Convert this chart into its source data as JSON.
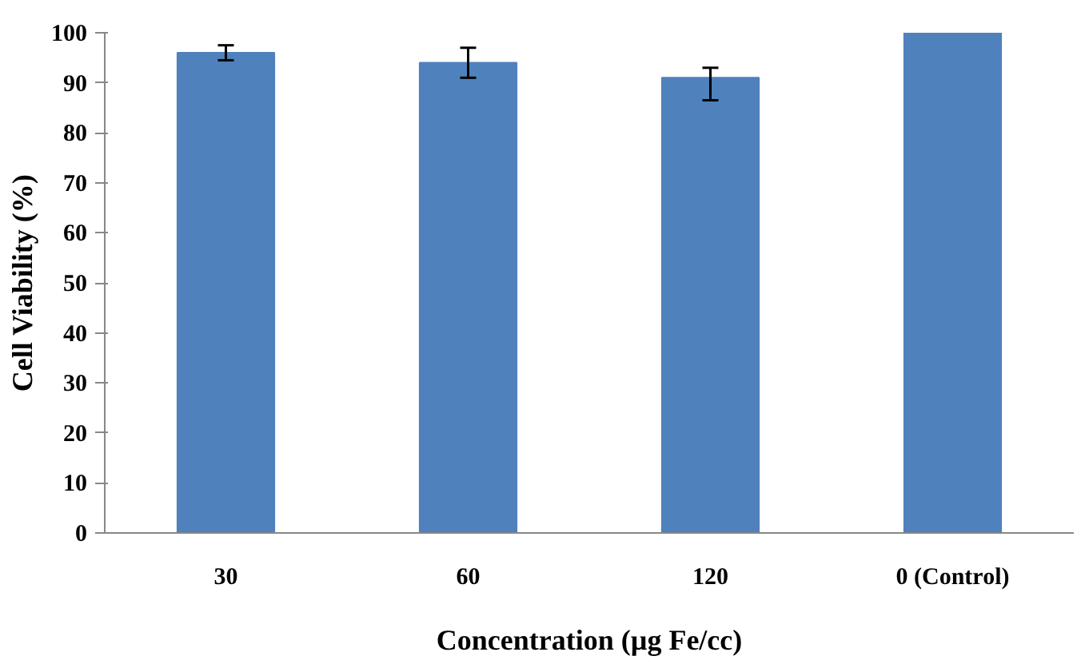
{
  "chart_data": {
    "type": "bar",
    "xlabel": "Concentration (µg Fe/cc)",
    "ylabel": "Cell Viability (%)",
    "categories": [
      "30",
      "60",
      "120",
      "0 (Control)"
    ],
    "values": [
      96,
      94,
      91,
      100
    ],
    "errors": [
      1.5,
      3,
      [
        86.5,
        93
      ],
      null
    ],
    "color": "#4f81bd",
    "ylim": [
      0,
      100
    ],
    "yticks": [
      0,
      10,
      20,
      30,
      40,
      50,
      60,
      70,
      80,
      90,
      100
    ],
    "grid": false
  }
}
